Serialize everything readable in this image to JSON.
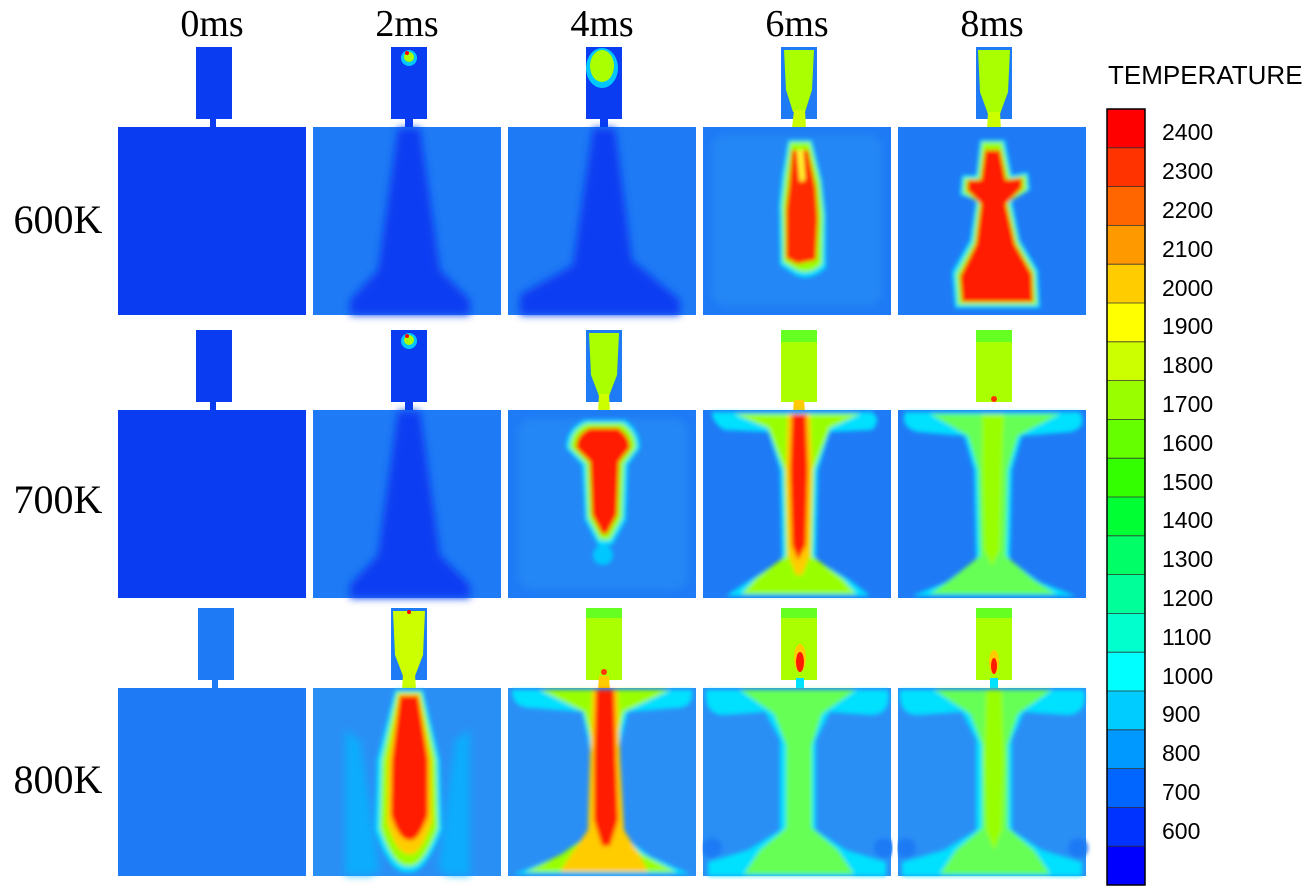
{
  "figure": {
    "columns": [
      "0ms",
      "2ms",
      "4ms",
      "6ms",
      "8ms"
    ],
    "rows": [
      "600K",
      "700K",
      "800K"
    ]
  },
  "legend": {
    "title": "TEMPERATURE",
    "ticks": [
      "2400",
      "2300",
      "2200",
      "2100",
      "2000",
      "1900",
      "1800",
      "1700",
      "1600",
      "1500",
      "1400",
      "1300",
      "1200",
      "1100",
      "1000",
      "900",
      "800",
      "700",
      "600"
    ],
    "colors": [
      "#ff0000",
      "#ff3300",
      "#ff6600",
      "#ff9900",
      "#ffcc00",
      "#ffff00",
      "#ccff00",
      "#99ff00",
      "#66ff00",
      "#33ff00",
      "#00ff33",
      "#00ff66",
      "#00ff99",
      "#00ffcc",
      "#00ffff",
      "#00ccff",
      "#0099ff",
      "#0066ff",
      "#0033ff",
      "#0000ff"
    ]
  }
}
